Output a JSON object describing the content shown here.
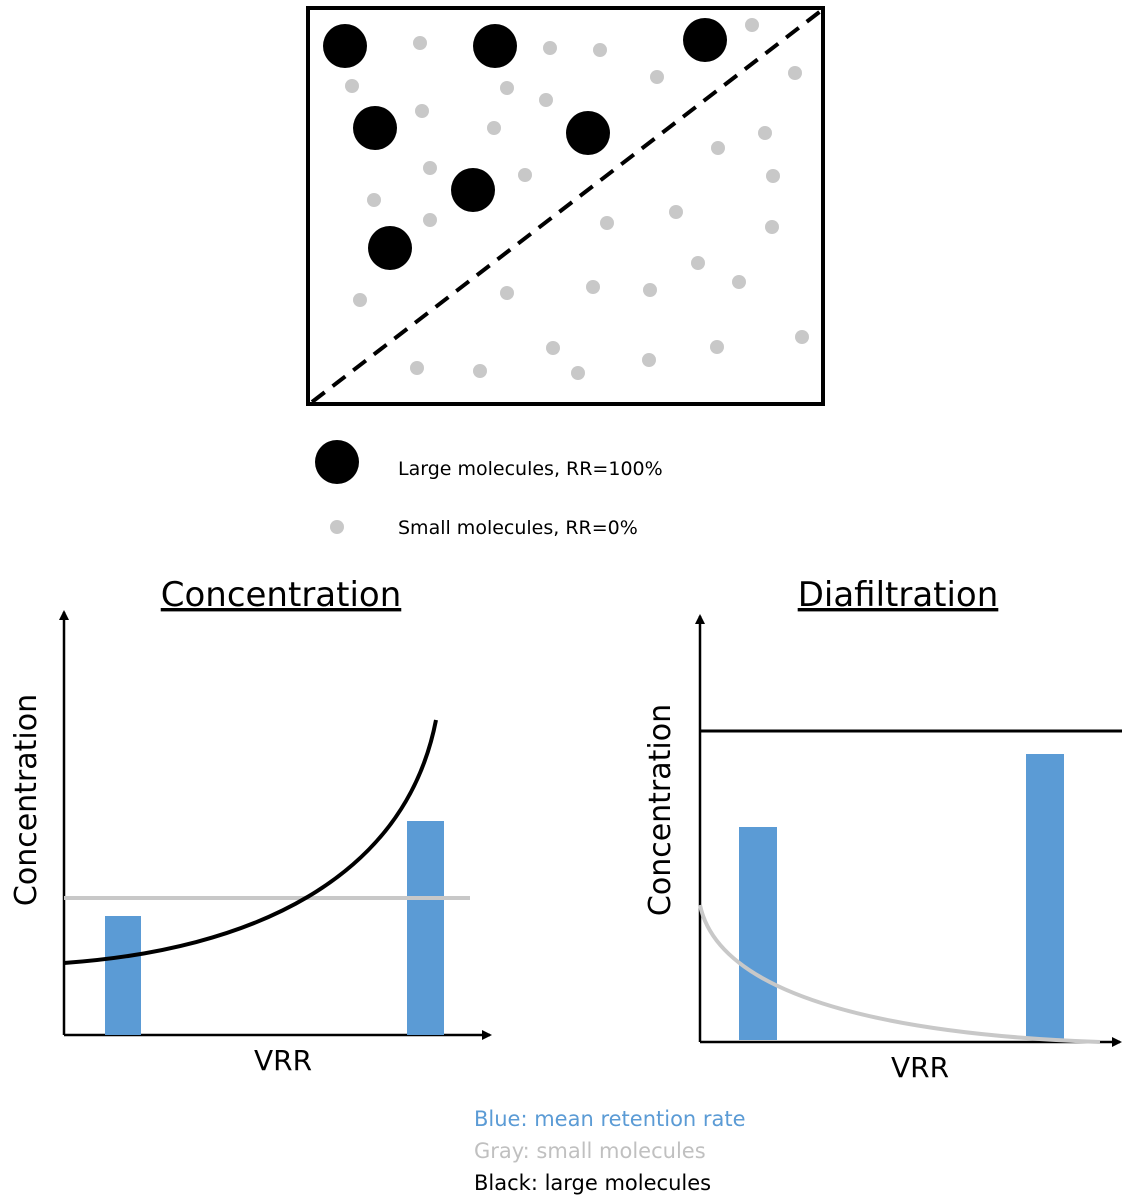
{
  "legend": {
    "large": "Large molecules, RR=100%",
    "small": "Small molecules, RR=0%"
  },
  "panels": [
    {
      "title": "Concentration",
      "y_label": "Concentration",
      "x_label": "VRR"
    },
    {
      "title": "Diafiltration",
      "y_label": "Concentration",
      "x_label": "VRR"
    }
  ],
  "notes": {
    "blue": "Blue: mean retention rate",
    "gray": "Gray: small molecules",
    "black": "Black: large molecules"
  }
}
